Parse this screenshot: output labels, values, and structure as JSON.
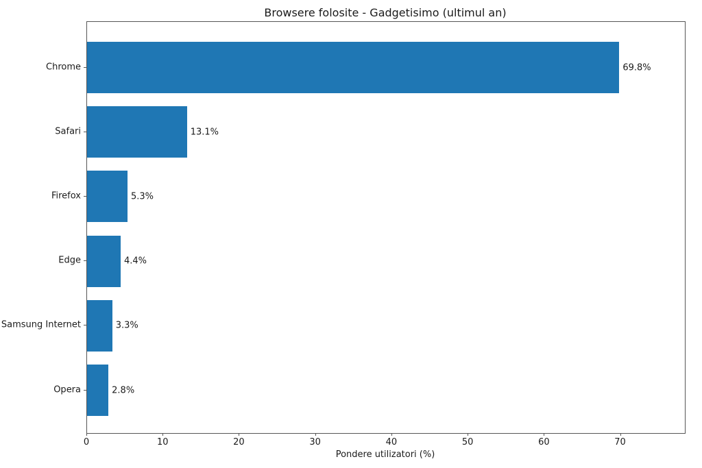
{
  "chart_data": {
    "type": "bar",
    "orientation": "horizontal",
    "title": "Browsere folosite - Gadgetisimo (ultimul an)",
    "xlabel": "Pondere utilizatori (%)",
    "ylabel": "",
    "categories": [
      "Chrome",
      "Safari",
      "Firefox",
      "Edge",
      "Samsung Internet",
      "Opera"
    ],
    "values": [
      69.8,
      13.1,
      5.3,
      4.4,
      3.3,
      2.8
    ],
    "value_labels": [
      "69.8%",
      "13.1%",
      "5.3%",
      "4.4%",
      "3.3%",
      "2.8%"
    ],
    "xlim": [
      0,
      78.4
    ],
    "xticks": [
      0,
      10,
      20,
      30,
      40,
      50,
      60,
      70
    ],
    "bar_color": "#1f77b4",
    "grid": false,
    "legend_position": "none"
  }
}
